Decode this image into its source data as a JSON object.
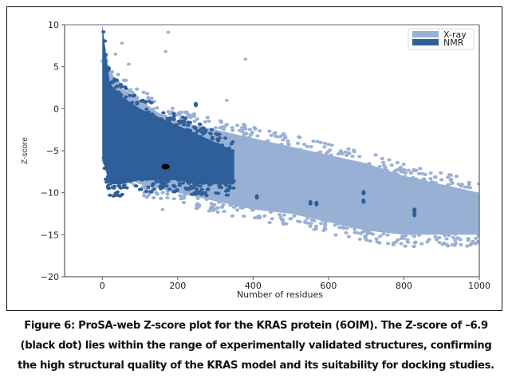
{
  "chart_data": {
    "type": "scatter",
    "title": "",
    "xlabel": "Number of residues",
    "ylabel": "Z-score",
    "xlim": [
      -100,
      1000
    ],
    "ylim": [
      -20,
      10
    ],
    "xticks": [
      0,
      200,
      400,
      600,
      800,
      1000
    ],
    "yticks": [
      10,
      5,
      0,
      -5,
      -10,
      -15,
      -20
    ],
    "xtick_labels": [
      "0",
      "200",
      "400",
      "600",
      "800",
      "1000"
    ],
    "ytick_labels": [
      "10",
      "5",
      "0",
      "−5",
      "−10",
      "−15",
      "−20"
    ],
    "grid": false,
    "legend": {
      "placement": "top-right",
      "entries": [
        "X-ray",
        "NMR"
      ]
    },
    "series": [
      {
        "name": "X-ray",
        "color": "#98b0d4",
        "kind": "dense cloud",
        "envelope_residues": [
          0,
          50,
          100,
          150,
          200,
          300,
          400,
          500,
          600,
          700,
          800,
          900,
          1000
        ],
        "envelope_upper_z": [
          6,
          2.5,
          1,
          -0.5,
          -1.5,
          -2.5,
          -3.5,
          -4.5,
          -5.5,
          -6.5,
          -8,
          -9,
          -10
        ],
        "envelope_lower_z": [
          -6,
          -8,
          -9,
          -9.5,
          -10,
          -11,
          -12,
          -12.5,
          -13.5,
          -14.5,
          -15,
          -15,
          -15
        ],
        "outliers": [
          {
            "x": 175,
            "y": 9.1
          },
          {
            "x": 52,
            "y": 7.8
          },
          {
            "x": 168,
            "y": 6.8
          },
          {
            "x": 35,
            "y": 6.5
          },
          {
            "x": 380,
            "y": 5.9
          },
          {
            "x": 70,
            "y": 5.3
          },
          {
            "x": 330,
            "y": 1.0
          },
          {
            "x": 160,
            "y": -12.0
          },
          {
            "x": 940,
            "y": -9.8
          },
          {
            "x": 968,
            "y": -12.8
          }
        ]
      },
      {
        "name": "NMR",
        "color": "#2e5f99",
        "kind": "dense cloud",
        "envelope_residues": [
          0,
          20,
          50,
          100,
          150,
          200,
          250,
          300,
          350
        ],
        "envelope_upper_z": [
          10,
          3,
          1.5,
          0,
          -1,
          -2,
          -3,
          -4,
          -5
        ],
        "envelope_lower_z": [
          -6,
          -9,
          -9,
          -8.5,
          -8.5,
          -8.5,
          -9,
          -9,
          -9
        ],
        "outliers": [
          {
            "x": 35,
            "y": -10.2
          },
          {
            "x": 15,
            "y": -9.3
          },
          {
            "x": 248,
            "y": 0.5
          },
          {
            "x": 410,
            "y": -10.5
          },
          {
            "x": 552,
            "y": -11.2
          },
          {
            "x": 568,
            "y": -11.3
          },
          {
            "x": 693,
            "y": -10.0
          },
          {
            "x": 693,
            "y": -11.0
          },
          {
            "x": 828,
            "y": -12.1
          },
          {
            "x": 828,
            "y": -12.6
          }
        ]
      },
      {
        "name": "KRAS (6OIM)",
        "color": "#000000",
        "kind": "highlight point",
        "points": [
          {
            "x": 168,
            "y": -6.9
          }
        ]
      }
    ]
  },
  "caption": {
    "lines": [
      "Figure 6: ProSA-web Z-score plot for the KRAS protein (6OIM). The Z-score of –6.9",
      "(black dot) lies within the range of experimentally validated structures, confirming",
      "the high structural quality of the KRAS model and its suitability for docking studies."
    ]
  }
}
